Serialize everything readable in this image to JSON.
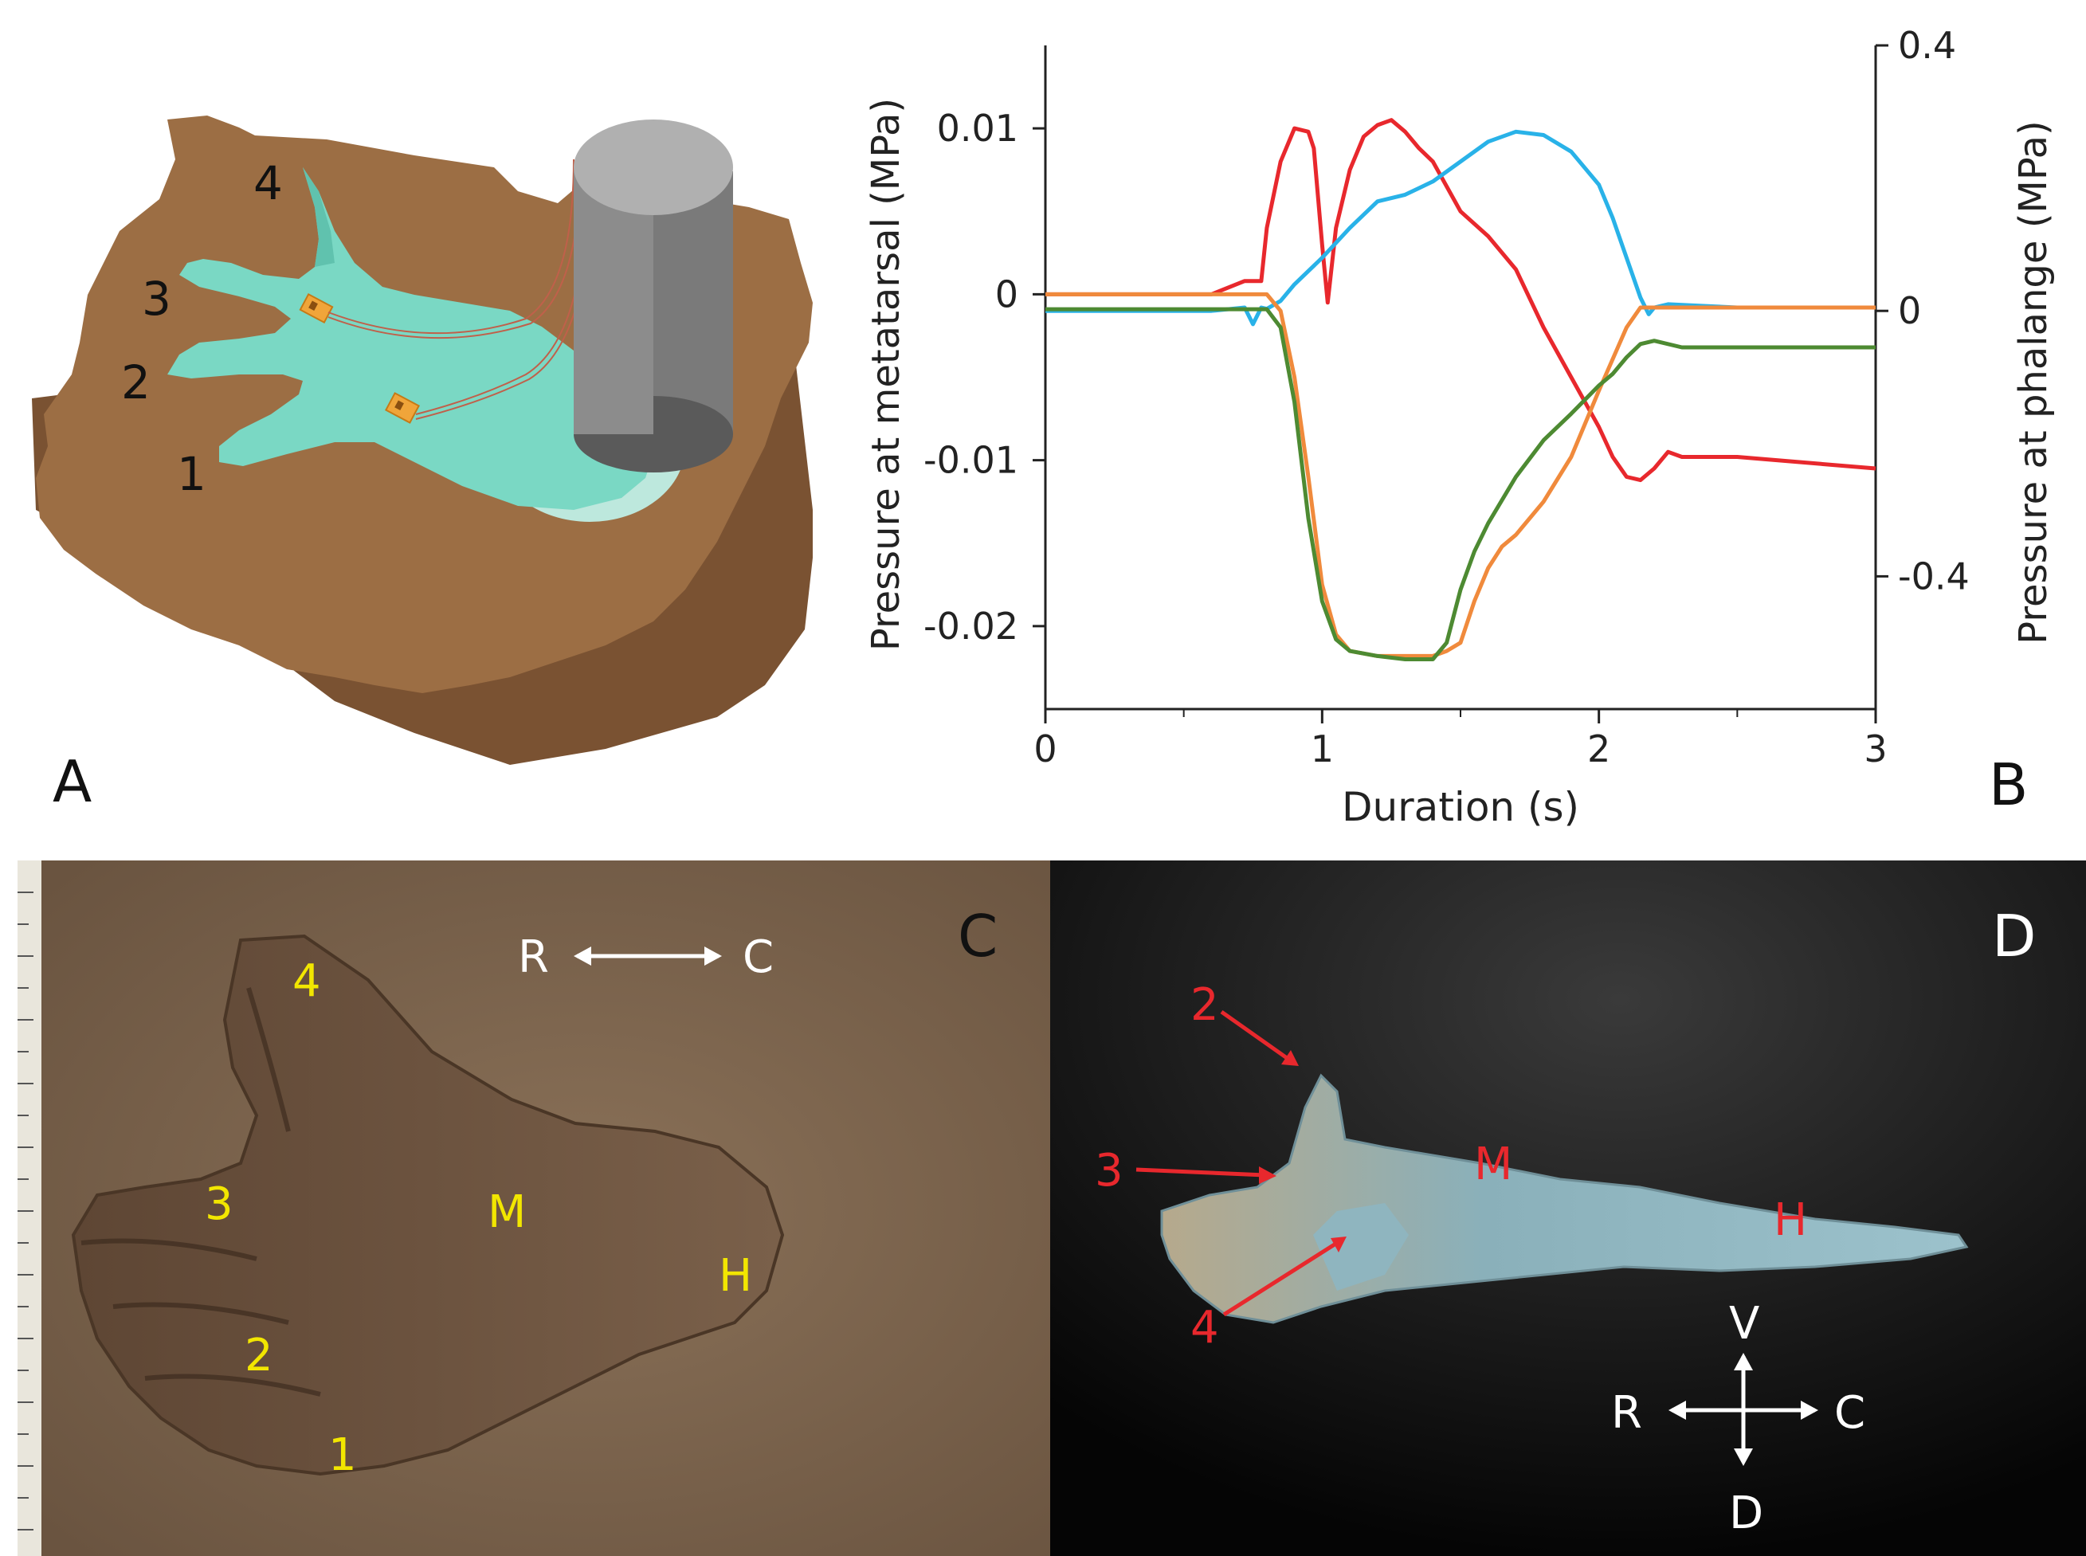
{
  "panel_a": {
    "letter": "A",
    "digits": [
      "1",
      "2",
      "3",
      "4"
    ]
  },
  "panel_b": {
    "letter": "B",
    "chart_data": {
      "type": "line",
      "xlabel": "Duration (s)",
      "ylabel_left": "Pressure at metatarsal (MPa)",
      "ylabel_right": "Pressure at phalange (MPa)",
      "xlim": [
        0,
        3
      ],
      "ylim_left": [
        -0.025,
        0.015
      ],
      "ylim_right": [
        -0.6,
        0.4
      ],
      "x_ticks": [
        "0",
        "1",
        "2",
        "3"
      ],
      "y_left_ticks": [
        "0.01",
        "0",
        "-0.01",
        "-0.02"
      ],
      "y_left_tick_values": [
        0.01,
        0,
        -0.01,
        -0.02
      ],
      "y_right_ticks": [
        "0.4",
        "0",
        "-0.4"
      ],
      "y_right_tick_values": [
        0.4,
        0,
        -0.4
      ],
      "colors": {
        "red": "#e8282d",
        "blue": "#29b2e8",
        "orange": "#f08a3c",
        "green": "#4d8a32"
      },
      "series": [
        {
          "color": "red",
          "axis": "left",
          "x": [
            0,
            0.6,
            0.72,
            0.78,
            0.8,
            0.85,
            0.9,
            0.95,
            0.97,
            1.0,
            1.02,
            1.05,
            1.1,
            1.15,
            1.2,
            1.25,
            1.3,
            1.35,
            1.4,
            1.5,
            1.6,
            1.7,
            1.8,
            1.9,
            2.0,
            2.05,
            2.1,
            2.15,
            2.2,
            2.25,
            2.3,
            2.5,
            3.0
          ],
          "y": [
            0,
            0,
            0.0008,
            0.0008,
            0.004,
            0.008,
            0.01,
            0.0098,
            0.0088,
            0.003,
            -0.0005,
            0.004,
            0.0075,
            0.0095,
            0.0102,
            0.0105,
            0.0098,
            0.0088,
            0.008,
            0.005,
            0.0035,
            0.0015,
            -0.002,
            -0.005,
            -0.008,
            -0.0098,
            -0.011,
            -0.0112,
            -0.0105,
            -0.0095,
            -0.0098,
            -0.0098,
            -0.0105
          ]
        },
        {
          "color": "blue",
          "axis": "right",
          "x": [
            0,
            0.6,
            0.72,
            0.75,
            0.78,
            0.8,
            0.85,
            0.9,
            1.0,
            1.1,
            1.2,
            1.3,
            1.4,
            1.5,
            1.6,
            1.7,
            1.8,
            1.9,
            2.0,
            2.05,
            2.1,
            2.15,
            2.18,
            2.2,
            2.25,
            2.5,
            3.0
          ],
          "y": [
            0,
            0,
            0.005,
            -0.02,
            0.005,
            0.003,
            0.015,
            0.04,
            0.08,
            0.125,
            0.165,
            0.175,
            0.195,
            0.225,
            0.255,
            0.27,
            0.265,
            0.24,
            0.19,
            0.14,
            0.08,
            0.02,
            -0.005,
            0.005,
            0.01,
            0.005,
            0.005
          ]
        },
        {
          "color": "orange",
          "axis": "left",
          "x": [
            0,
            0.8,
            0.85,
            0.9,
            0.95,
            1.0,
            1.05,
            1.1,
            1.2,
            1.3,
            1.4,
            1.45,
            1.5,
            1.55,
            1.6,
            1.65,
            1.7,
            1.8,
            1.9,
            2.0,
            2.1,
            2.15,
            2.2,
            3.0
          ],
          "y": [
            0,
            0,
            -0.001,
            -0.005,
            -0.011,
            -0.0175,
            -0.0205,
            -0.0215,
            -0.0218,
            -0.0218,
            -0.0218,
            -0.0215,
            -0.021,
            -0.0185,
            -0.0165,
            -0.0152,
            -0.0145,
            -0.0125,
            -0.0098,
            -0.0058,
            -0.002,
            -0.0008,
            -0.0008,
            -0.0008
          ]
        },
        {
          "color": "green",
          "axis": "left",
          "x": [
            0,
            0.8,
            0.85,
            0.9,
            0.95,
            1.0,
            1.05,
            1.1,
            1.2,
            1.3,
            1.4,
            1.45,
            1.5,
            1.55,
            1.6,
            1.7,
            1.8,
            1.9,
            2.0,
            2.05,
            2.1,
            2.15,
            2.2,
            2.3,
            3.0
          ],
          "y": [
            -0.0009,
            -0.0009,
            -0.002,
            -0.0065,
            -0.0135,
            -0.0185,
            -0.0208,
            -0.0215,
            -0.0218,
            -0.022,
            -0.022,
            -0.021,
            -0.0178,
            -0.0155,
            -0.0138,
            -0.011,
            -0.0088,
            -0.0072,
            -0.0055,
            -0.0048,
            -0.0038,
            -0.003,
            -0.0028,
            -0.0032,
            -0.0032
          ]
        }
      ]
    }
  },
  "panel_c": {
    "letter": "C",
    "digits": [
      "1",
      "2",
      "3",
      "4"
    ],
    "region_labels": {
      "metatarsal": "M",
      "heel": "H"
    },
    "axis_labels": {
      "rostral": "R",
      "caudal": "C"
    },
    "label_color": "#f2e600"
  },
  "panel_d": {
    "letter": "D",
    "digits": [
      "2",
      "3",
      "4"
    ],
    "region_labels": {
      "metatarsal": "M",
      "heel": "H"
    },
    "axis_labels": {
      "rostral": "R",
      "caudal": "C",
      "ventral": "V",
      "dorsal": "D"
    },
    "label_color": "#e8282d"
  }
}
